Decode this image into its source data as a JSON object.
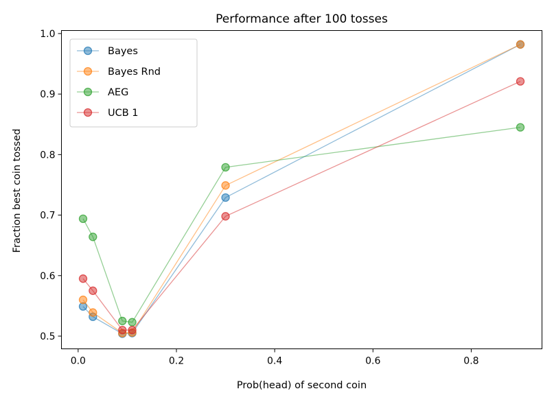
{
  "chart_data": {
    "type": "line",
    "title": "Performance after 100 tosses",
    "xlabel": "Prob(head) of second coin",
    "ylabel": "Fraction best coin tossed",
    "xlim": [
      -0.034,
      0.944
    ],
    "ylim": [
      0.479,
      1.005
    ],
    "xticks": [
      0.0,
      0.2,
      0.4,
      0.6,
      0.8
    ],
    "xtick_labels": [
      "0.0",
      "0.2",
      "0.4",
      "0.6",
      "0.8"
    ],
    "yticks": [
      0.5,
      0.6,
      0.7,
      0.8,
      0.9,
      1.0
    ],
    "ytick_labels": [
      "0.5",
      "0.6",
      "0.7",
      "0.8",
      "0.9",
      "1.0"
    ],
    "grid": false,
    "legend_position": "top-left",
    "x": [
      0.01,
      0.03,
      0.09,
      0.11,
      0.3,
      0.9
    ],
    "series": [
      {
        "name": "Bayes",
        "color": "#1f77b4",
        "values": [
          0.549,
          0.532,
          0.504,
          0.505,
          0.729,
          0.982
        ]
      },
      {
        "name": "Bayes Rnd",
        "color": "#ff7f0e",
        "values": [
          0.56,
          0.539,
          0.505,
          0.506,
          0.749,
          0.982
        ]
      },
      {
        "name": "AEG",
        "color": "#2ca02c",
        "values": [
          0.694,
          0.664,
          0.525,
          0.523,
          0.779,
          0.845
        ]
      },
      {
        "name": "UCB 1",
        "color": "#d62728",
        "values": [
          0.595,
          0.575,
          0.51,
          0.51,
          0.698,
          0.921
        ]
      }
    ]
  }
}
